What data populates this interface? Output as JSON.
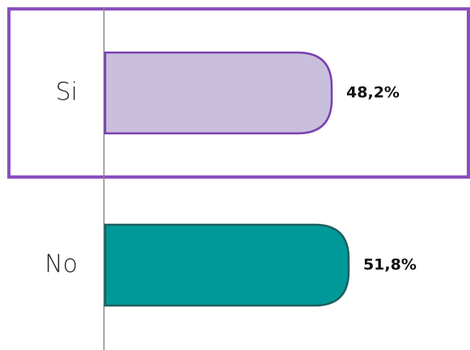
{
  "chart_data": {
    "type": "bar",
    "categories": [
      "Si",
      "No"
    ],
    "values": [
      48.2,
      51.8
    ],
    "value_labels": [
      "48,2%",
      "51,8%"
    ],
    "colors": [
      "#c9bfdc",
      "#009999"
    ],
    "edge_colors": [
      "#7b3fb0",
      "#1f5f5f"
    ]
  }
}
